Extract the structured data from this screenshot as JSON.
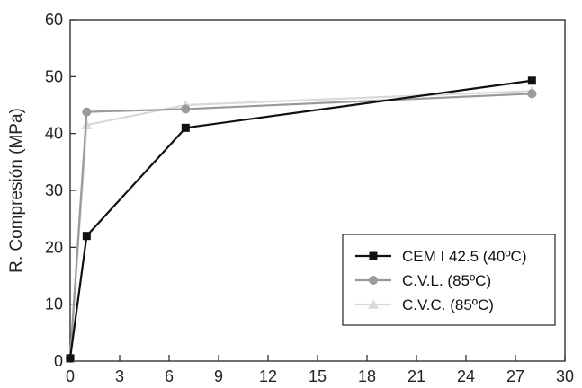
{
  "chart_data": {
    "type": "line",
    "title": "",
    "xlabel": "",
    "ylabel": "R. Compresión (MPa)",
    "xlim": [
      0,
      30
    ],
    "ylim": [
      0,
      60
    ],
    "xticks": [
      0,
      3,
      6,
      9,
      12,
      15,
      18,
      21,
      24,
      27,
      30
    ],
    "yticks": [
      0,
      10,
      20,
      30,
      40,
      50,
      60
    ],
    "xtick_labels": [
      "0",
      "3",
      "6",
      "9",
      "12",
      "15",
      "18",
      "21",
      "24",
      "27",
      "30"
    ],
    "ytick_labels": [
      "0",
      "10",
      "20",
      "30",
      "40",
      "50",
      "60"
    ],
    "grid": false,
    "legend_position": "bottom-right",
    "series": [
      {
        "name": "CEM I 42.5 (40ºC)",
        "color": "#111111",
        "marker": "square",
        "x": [
          0,
          1,
          7,
          28
        ],
        "y": [
          0.5,
          22,
          41,
          49.3
        ]
      },
      {
        "name": "C.V.L. (85ºC)",
        "color": "#9a9a9a",
        "marker": "circle",
        "x": [
          0,
          1,
          7,
          28
        ],
        "y": [
          0.5,
          43.8,
          44.3,
          47
        ]
      },
      {
        "name": "C.V.C. (85ºC)",
        "color": "#d9d9d9",
        "marker": "triangle",
        "x": [
          0,
          1,
          7,
          28
        ],
        "y": [
          0.5,
          41.5,
          45,
          47.5
        ]
      }
    ]
  }
}
